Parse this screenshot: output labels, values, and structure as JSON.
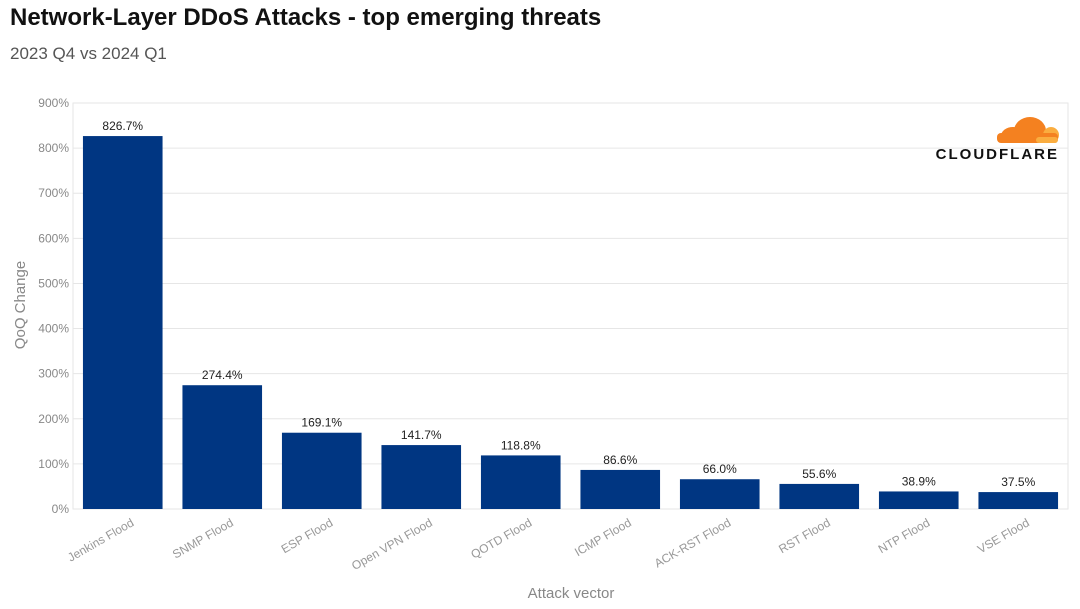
{
  "chart_data": {
    "type": "bar",
    "title": "Network-Layer DDoS Attacks - top emerging threats",
    "subtitle": "2023 Q4 vs 2024 Q1",
    "xlabel": "Attack vector",
    "ylabel": "QoQ Change",
    "ylim": [
      0,
      900
    ],
    "yticks": [
      "0%",
      "100%",
      "200%",
      "300%",
      "400%",
      "500%",
      "600%",
      "700%",
      "800%",
      "900%"
    ],
    "categories": [
      "Jenkins Flood",
      "SNMP Flood",
      "ESP Flood",
      "Open VPN Flood",
      "QOTD Flood",
      "ICMP Flood",
      "ACK-RST Flood",
      "RST Flood",
      "NTP Flood",
      "VSE Flood"
    ],
    "values": [
      826.7,
      274.4,
      169.1,
      141.7,
      118.8,
      86.6,
      66.0,
      55.6,
      38.9,
      37.5
    ],
    "value_labels": [
      "826.7%",
      "274.4%",
      "169.1%",
      "141.7%",
      "118.8%",
      "86.6%",
      "66.0%",
      "55.6%",
      "38.9%",
      "37.5%"
    ],
    "bar_color": "#003682",
    "grid": true,
    "legend": "none"
  },
  "logo": {
    "text": "CLOUDFLARE",
    "cloud_color_main": "#f48120",
    "cloud_color_light": "#faad3f"
  }
}
